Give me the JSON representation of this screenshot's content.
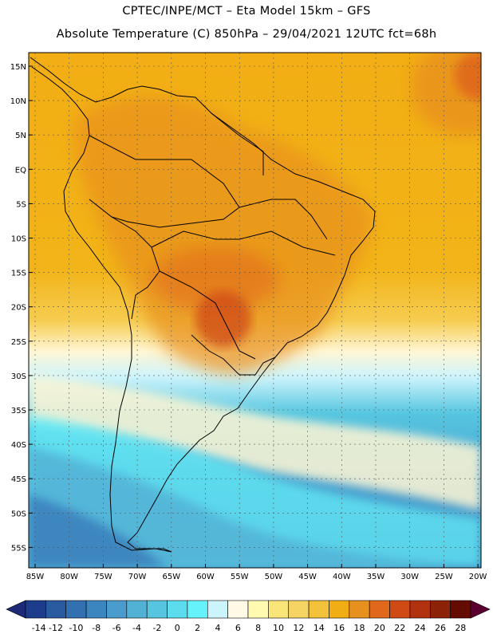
{
  "header": {
    "title_line1": "CPTEC/INPE/MCT –  Eta Model 15km – GFS",
    "title_line2": "Absolute Temperature (C) 850hPa – 29/04/2021 12UTC fct=68h"
  },
  "axes": {
    "lat_labels": [
      "15N",
      "10N",
      "5N",
      "EQ",
      "5S",
      "10S",
      "15S",
      "20S",
      "25S",
      "30S",
      "35S",
      "40S",
      "45S",
      "50S",
      "55S"
    ],
    "lon_labels": [
      "85W",
      "80W",
      "75W",
      "70W",
      "65W",
      "60W",
      "55W",
      "50W",
      "45W",
      "40W",
      "35W",
      "30W",
      "25W",
      "20W"
    ]
  },
  "colorbar": {
    "labels": [
      "-14",
      "-12",
      "-10",
      "-8",
      "-6",
      "-4",
      "-2",
      "0",
      "2",
      "4",
      "6",
      "8",
      "10",
      "12",
      "14",
      "16",
      "18",
      "20",
      "22",
      "24",
      "26",
      "28"
    ],
    "colors": [
      "#1e3c8c",
      "#2a5aa0",
      "#3270b0",
      "#3c86c0",
      "#4a9ccc",
      "#52b2d6",
      "#56c6e0",
      "#5cdcec",
      "#66f2fa",
      "#ccf4fc",
      "#fffae6",
      "#fffab0",
      "#fae678",
      "#f6d464",
      "#f2c23a",
      "#f0ae14",
      "#e8901e",
      "#e0681a",
      "#d04a14",
      "#b0320e",
      "#8c2208",
      "#640c02"
    ],
    "left_arrow_color": "#1e2a78",
    "right_arrow_color": "#5a0030"
  }
}
